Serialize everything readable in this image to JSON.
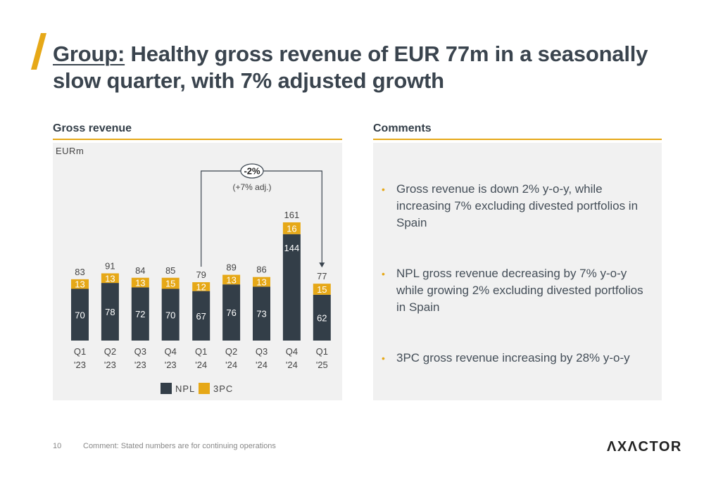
{
  "slide": {
    "title_lead": "Group:",
    "title_rest": " Healthy gross revenue of EUR 77m in a seasonally slow quarter, with 7% adjusted growth",
    "left_heading": "Gross revenue",
    "right_heading": "Comments",
    "page_number": "10",
    "footnote": "Comment: Stated numbers are for continuing operations",
    "logo_text": "ΛXΛCTOR"
  },
  "colors": {
    "npl": "#333e48",
    "threepc": "#e6a817",
    "accent": "#e6a817",
    "panel": "#f1f1f1"
  },
  "chart_data": {
    "type": "bar",
    "stacked": true,
    "unit": "EURm",
    "categories": [
      [
        "Q1",
        "'23"
      ],
      [
        "Q2",
        "'23"
      ],
      [
        "Q3",
        "'23"
      ],
      [
        "Q4",
        "'23"
      ],
      [
        "Q1",
        "'24"
      ],
      [
        "Q2",
        "'24"
      ],
      [
        "Q3",
        "'24"
      ],
      [
        "Q4",
        "'24"
      ],
      [
        "Q1",
        "'25"
      ]
    ],
    "series": [
      {
        "name": "NPL",
        "values": [
          70,
          78,
          72,
          70,
          67,
          76,
          73,
          144,
          62
        ]
      },
      {
        "name": "3PC",
        "values": [
          13,
          13,
          13,
          15,
          12,
          13,
          13,
          16,
          15
        ]
      }
    ],
    "totals": [
      83,
      91,
      84,
      85,
      79,
      89,
      86,
      161,
      77
    ],
    "annotation": {
      "from_index": 4,
      "to_index": 8,
      "change": "-2%",
      "adjusted": "(+7% adj.)"
    },
    "legend_position": "bottom-center",
    "grid": false
  },
  "comments": [
    "Gross revenue is down 2% y-o-y, while increasing 7% excluding divested portfolios in Spain",
    "NPL gross revenue decreasing by 7% y-o-y while growing 2% excluding divested portfolios in Spain",
    "3PC gross revenue increasing by 28% y-o-y"
  ]
}
